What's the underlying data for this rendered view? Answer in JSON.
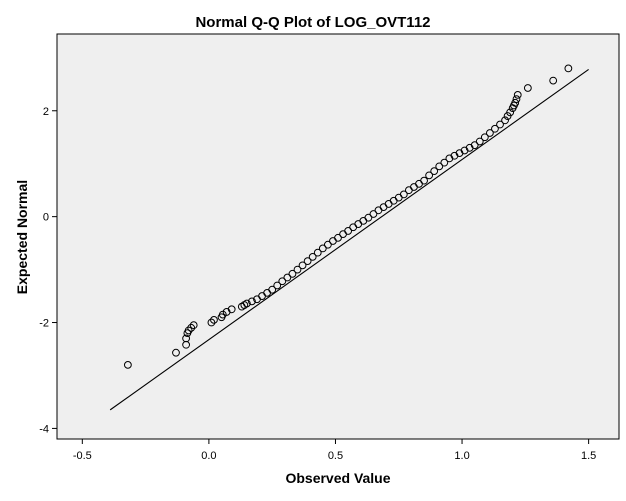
{
  "chart_data": {
    "type": "scatter",
    "title": "Normal Q-Q Plot of LOG_OVT112",
    "xlabel": "Observed Value",
    "ylabel": "Expected Normal",
    "xlim": [
      -0.6,
      1.62
    ],
    "ylim": [
      -4.2,
      3.45
    ],
    "xticks": [
      -0.5,
      0.0,
      0.5,
      1.0,
      1.5
    ],
    "xtick_labels": [
      "-0.5",
      "0.0",
      "0.5",
      "1.0",
      "1.5"
    ],
    "yticks": [
      -4,
      -2,
      0,
      2
    ],
    "ytick_labels": [
      "-4",
      "-2",
      "0",
      "2"
    ],
    "grid": false,
    "plot_background": "#efefef",
    "reference_line": {
      "x": [
        -0.39,
        1.5
      ],
      "y": [
        -3.65,
        2.78
      ]
    },
    "series": [
      {
        "marker": "open-circle",
        "x": [
          -0.32,
          -0.13,
          -0.09,
          -0.09,
          -0.085,
          -0.08,
          -0.07,
          -0.06,
          0.01,
          0.02,
          0.05,
          0.055,
          0.07,
          0.09,
          0.13,
          0.14,
          0.15,
          0.17,
          0.19,
          0.21,
          0.23,
          0.25,
          0.27,
          0.29,
          0.31,
          0.33,
          0.35,
          0.37,
          0.39,
          0.41,
          0.43,
          0.45,
          0.47,
          0.49,
          0.51,
          0.53,
          0.55,
          0.57,
          0.59,
          0.61,
          0.63,
          0.65,
          0.67,
          0.69,
          0.71,
          0.73,
          0.75,
          0.77,
          0.79,
          0.81,
          0.83,
          0.85,
          0.87,
          0.89,
          0.91,
          0.93,
          0.95,
          0.97,
          0.99,
          1.01,
          1.03,
          1.05,
          1.07,
          1.09,
          1.11,
          1.13,
          1.15,
          1.17,
          1.18,
          1.19,
          1.2,
          1.205,
          1.21,
          1.215,
          1.22,
          1.26,
          1.36,
          1.42
        ],
        "y": [
          -2.8,
          -2.57,
          -2.42,
          -2.3,
          -2.2,
          -2.15,
          -2.1,
          -2.05,
          -2.0,
          -1.95,
          -1.9,
          -1.85,
          -1.8,
          -1.75,
          -1.7,
          -1.67,
          -1.64,
          -1.6,
          -1.56,
          -1.5,
          -1.44,
          -1.38,
          -1.3,
          -1.22,
          -1.15,
          -1.08,
          -1.0,
          -0.92,
          -0.84,
          -0.76,
          -0.68,
          -0.6,
          -0.53,
          -0.46,
          -0.4,
          -0.33,
          -0.27,
          -0.2,
          -0.14,
          -0.08,
          -0.02,
          0.05,
          0.12,
          0.18,
          0.24,
          0.3,
          0.36,
          0.42,
          0.5,
          0.56,
          0.62,
          0.68,
          0.78,
          0.86,
          0.95,
          1.02,
          1.1,
          1.15,
          1.2,
          1.25,
          1.3,
          1.35,
          1.42,
          1.5,
          1.58,
          1.66,
          1.74,
          1.82,
          1.9,
          1.97,
          2.05,
          2.1,
          2.15,
          2.22,
          2.3,
          2.43,
          2.57,
          2.8
        ]
      }
    ]
  }
}
